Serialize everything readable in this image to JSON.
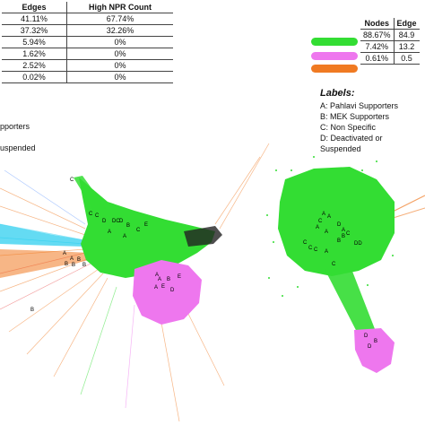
{
  "left_table": {
    "headers": [
      "Edges",
      "High NPR Count"
    ],
    "rows": [
      [
        "41.11%",
        "67.74%"
      ],
      [
        "37.32%",
        "32.26%"
      ],
      [
        "5.94%",
        "0%"
      ],
      [
        "1.62%",
        "0%"
      ],
      [
        "2.52%",
        "0%"
      ],
      [
        "0.02%",
        "0%"
      ]
    ]
  },
  "right_table": {
    "headers": [
      "Nodes",
      "Edge"
    ],
    "rows": [
      [
        "88.67%",
        "84.9"
      ],
      [
        "7.42%",
        "13.2"
      ],
      [
        "0.61%",
        "0.5"
      ]
    ],
    "colors": [
      "#33dd33",
      "#ee77ee",
      "#f07a22"
    ]
  },
  "left_legend": [
    "pporters",
    "uspended"
  ],
  "labels": {
    "title": "Labels:",
    "items": [
      "A: Pahlavi Supporters",
      "B: MEK Supporters",
      "C: Non Specific",
      "D: Deactivated or Suspended"
    ]
  },
  "colors": {
    "green": "#33dd33",
    "pink": "#ee77ee",
    "orange": "#f07a22",
    "cyan": "#22ccee",
    "dark": "#222222"
  }
}
